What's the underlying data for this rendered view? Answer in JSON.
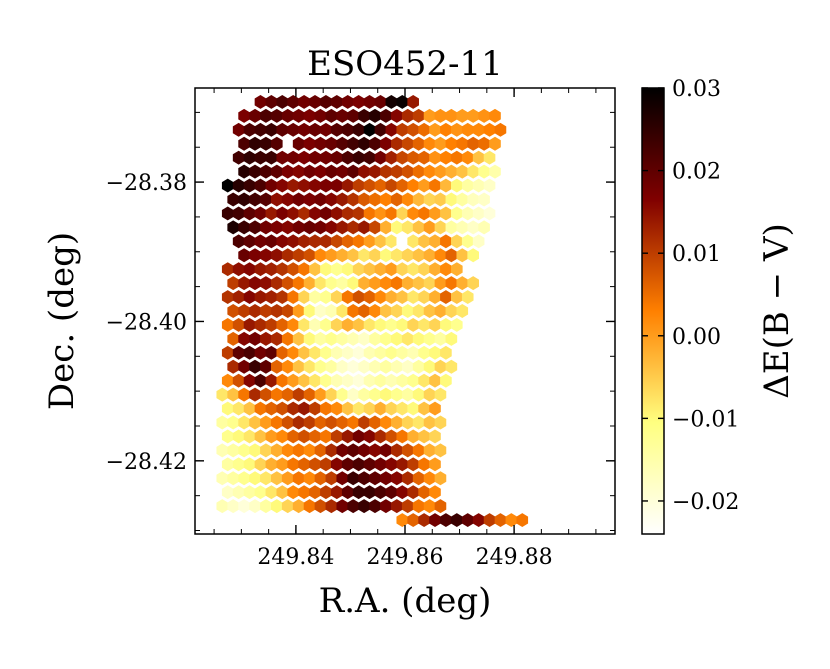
{
  "chart_data": {
    "type": "heatmap",
    "subtype": "hexbin",
    "title": "ESO452-11",
    "xlabel": "R.A. (deg)",
    "ylabel": "Dec. (deg)",
    "colorbar_label": "ΔE(B − V)",
    "colormap": "afmhot_r",
    "xlim": [
      249.8215,
      249.8985
    ],
    "ylim": [
      -28.4305,
      -28.3665
    ],
    "x_ticks": [
      249.84,
      249.86,
      249.88
    ],
    "x_tick_labels": [
      "249.84",
      "249.86",
      "249.88"
    ],
    "y_ticks": [
      -28.42,
      -28.4,
      -28.38
    ],
    "y_tick_labels": [
      "−28.42",
      "−28.40",
      "−28.38"
    ],
    "clim": [
      -0.024,
      0.03
    ],
    "colorbar_ticks": [
      0.03,
      0.02,
      0.01,
      0.0,
      -0.01,
      -0.02
    ],
    "colorbar_tick_labels": [
      "0.03",
      "0.02",
      "0.01",
      "0.00",
      "−0.01",
      "−0.02"
    ],
    "hex_ra_spacing": 0.002,
    "hex_rows": [
      {
        "dec": -28.3685,
        "ra_start": 249.8335,
        "values": [
          0.018,
          0.02,
          0.022,
          0.02,
          0.018,
          0.019,
          0.021,
          0.02,
          0.018,
          0.017,
          0.018,
          0.019,
          0.028,
          0.029,
          0.014
        ]
      },
      {
        "dec": -28.3705,
        "ra_start": 249.8305,
        "values": [
          0.017,
          0.019,
          0.022,
          0.021,
          0.019,
          0.018,
          0.017,
          0.018,
          0.02,
          0.019,
          0.02,
          0.024,
          0.026,
          0.022,
          0.016,
          0.012,
          0.01,
          0.0,
          0.001,
          0.001,
          0.0,
          0.0,
          0.001,
          0.002
        ]
      },
      {
        "dec": -28.3725,
        "ra_start": 249.8295,
        "values": [
          0.018,
          0.022,
          0.023,
          0.024,
          0.02,
          0.019,
          0.018,
          0.019,
          0.018,
          0.021,
          0.022,
          0.024,
          0.03,
          0.023,
          0.016,
          0.01,
          0.008,
          0.005,
          0.0,
          0.003,
          0.001,
          0.002,
          0.002,
          0.003,
          0.004
        ]
      },
      {
        "dec": -28.3745,
        "ra_start": 249.8305,
        "values": [
          0.022,
          0.025,
          0.024,
          0.021,
          null,
          0.019,
          0.017,
          0.018,
          0.019,
          0.021,
          0.023,
          0.025,
          0.022,
          0.017,
          0.012,
          0.009,
          0.006,
          0.002,
          0.0,
          0.003,
          0.004,
          0.006,
          0.005,
          0.0
        ]
      },
      {
        "dec": -28.3765,
        "ra_start": 249.8295,
        "values": [
          0.023,
          0.025,
          0.024,
          0.024,
          0.018,
          0.018,
          0.017,
          0.018,
          0.018,
          0.019,
          0.022,
          0.024,
          0.023,
          0.018,
          0.013,
          0.009,
          0.007,
          0.006,
          0.001,
          0.003,
          0.004,
          0.002,
          -0.004,
          -0.008
        ]
      },
      {
        "dec": -28.3785,
        "ra_start": 249.8305,
        "values": [
          0.026,
          0.024,
          0.022,
          0.02,
          0.017,
          0.016,
          0.018,
          0.017,
          0.019,
          0.018,
          0.02,
          0.015,
          0.014,
          0.011,
          0.01,
          0.008,
          0.005,
          0.002,
          0.0,
          -0.002,
          -0.004,
          -0.008,
          -0.012,
          -0.015
        ]
      },
      {
        "dec": -28.3805,
        "ra_start": 249.8275,
        "values": [
          0.031,
          0.026,
          0.024,
          0.022,
          0.018,
          0.016,
          0.014,
          0.015,
          0.016,
          0.017,
          0.017,
          0.014,
          0.01,
          0.008,
          0.006,
          0.009,
          0.006,
          0.003,
          0.0,
          0.004,
          -0.003,
          -0.01,
          -0.014,
          -0.016,
          -0.018
        ]
      },
      {
        "dec": -28.3825,
        "ra_start": 249.8285,
        "values": [
          0.024,
          0.025,
          0.023,
          0.021,
          0.015,
          0.016,
          0.018,
          0.017,
          0.018,
          0.016,
          0.014,
          0.011,
          0.007,
          0.005,
          0.003,
          0.006,
          0.002,
          -0.003,
          -0.006,
          -0.005,
          -0.01,
          -0.014,
          -0.017,
          -0.018
        ]
      },
      {
        "dec": -28.3845,
        "ra_start": 249.8275,
        "values": [
          0.024,
          0.023,
          0.02,
          0.018,
          0.014,
          0.017,
          0.015,
          0.012,
          0.016,
          0.018,
          0.015,
          0.012,
          0.011,
          0.004,
          0.001,
          0.004,
          -0.006,
          0.002,
          0.004,
          0.0,
          -0.004,
          -0.012,
          -0.016,
          -0.018,
          -0.02
        ]
      },
      {
        "dec": -28.3865,
        "ra_start": 249.8285,
        "values": [
          0.027,
          0.024,
          0.022,
          0.018,
          0.017,
          0.016,
          0.018,
          0.019,
          0.018,
          0.016,
          0.014,
          0.012,
          0.014,
          0.009,
          -0.002,
          -0.01,
          -0.008,
          -0.004,
          0.0,
          -0.006,
          -0.014,
          -0.016,
          -0.018,
          -0.016
        ]
      },
      {
        "dec": -28.3885,
        "ra_start": 249.8295,
        "values": [
          0.022,
          0.02,
          0.018,
          0.019,
          0.016,
          0.015,
          0.013,
          0.012,
          0.012,
          0.009,
          0.006,
          0.004,
          0.0,
          -0.004,
          -0.008,
          -0.024,
          -0.008,
          -0.004,
          -0.002,
          0.004,
          -0.006,
          -0.012,
          -0.018
        ]
      },
      {
        "dec": -28.3905,
        "ra_start": 249.8305,
        "values": [
          0.019,
          0.017,
          0.016,
          0.015,
          0.012,
          0.01,
          0.008,
          0.002,
          0.0,
          -0.002,
          -0.004,
          -0.008,
          -0.006,
          -0.01,
          -0.008,
          -0.006,
          -0.004,
          -0.002,
          0.002,
          0.006,
          -0.004,
          -0.01
        ]
      },
      {
        "dec": -28.3925,
        "ra_start": 249.8275,
        "values": [
          0.012,
          0.015,
          0.016,
          0.014,
          0.013,
          0.011,
          0.008,
          0.004,
          -0.004,
          -0.01,
          -0.012,
          -0.01,
          -0.006,
          -0.004,
          -0.002,
          0.0,
          -0.006,
          -0.008,
          -0.006,
          -0.002,
          0.002,
          -0.002
        ]
      },
      {
        "dec": -28.3945,
        "ra_start": 249.8285,
        "values": [
          0.01,
          0.014,
          0.016,
          0.015,
          0.012,
          0.008,
          0.004,
          -0.002,
          -0.008,
          -0.012,
          -0.014,
          -0.01,
          -0.002,
          0.0,
          0.002,
          0.004,
          -0.002,
          -0.004,
          -0.006,
          0.0,
          0.004,
          -0.002,
          -0.006
        ]
      },
      {
        "dec": -28.3965,
        "ra_start": 249.8275,
        "values": [
          0.011,
          0.013,
          0.016,
          0.014,
          0.013,
          0.011,
          0.004,
          -0.006,
          -0.014,
          -0.012,
          -0.006,
          0.004,
          0.008,
          0.006,
          0.002,
          -0.002,
          -0.004,
          -0.008,
          -0.006,
          -0.002,
          0.006,
          -0.004,
          -0.008
        ]
      },
      {
        "dec": -28.3985,
        "ra_start": 249.8285,
        "values": [
          0.008,
          0.01,
          0.012,
          0.01,
          0.011,
          0.009,
          0.0,
          -0.01,
          -0.018,
          -0.016,
          -0.008,
          0.004,
          0.006,
          0.002,
          -0.004,
          -0.006,
          -0.01,
          -0.008,
          -0.004,
          -0.002,
          -0.006,
          -0.008
        ]
      },
      {
        "dec": -28.4005,
        "ra_start": 249.8275,
        "values": [
          0.004,
          0.008,
          0.014,
          0.012,
          0.01,
          0.006,
          0.002,
          -0.008,
          -0.016,
          -0.012,
          -0.006,
          -0.002,
          -0.004,
          -0.008,
          -0.01,
          -0.012,
          -0.01,
          -0.006,
          -0.008,
          -0.006,
          -0.01,
          -0.012
        ]
      },
      {
        "dec": -28.4025,
        "ra_start": 249.8285,
        "values": [
          0.006,
          0.016,
          0.018,
          0.014,
          0.012,
          0.004,
          -0.004,
          -0.01,
          -0.014,
          -0.012,
          -0.014,
          -0.016,
          -0.018,
          -0.014,
          -0.012,
          -0.01,
          -0.008,
          -0.01,
          -0.012,
          -0.014,
          -0.01
        ]
      },
      {
        "dec": -28.4045,
        "ra_start": 249.8275,
        "values": [
          0.01,
          0.02,
          0.022,
          0.018,
          0.02,
          0.006,
          0.002,
          -0.004,
          -0.008,
          -0.012,
          -0.016,
          -0.018,
          -0.02,
          -0.016,
          -0.014,
          -0.012,
          -0.014,
          -0.016,
          -0.012,
          -0.01,
          -0.008
        ]
      },
      {
        "dec": -28.4065,
        "ra_start": 249.8285,
        "values": [
          0.012,
          0.018,
          0.024,
          0.02,
          0.006,
          0.002,
          -0.004,
          -0.008,
          -0.012,
          -0.014,
          -0.018,
          -0.02,
          -0.018,
          -0.016,
          -0.014,
          -0.016,
          -0.018,
          -0.014,
          -0.01,
          -0.006,
          -0.008
        ]
      },
      {
        "dec": -28.4085,
        "ra_start": 249.8275,
        "values": [
          0.002,
          0.008,
          0.016,
          0.022,
          0.014,
          0.004,
          0.0,
          -0.004,
          -0.008,
          -0.012,
          -0.016,
          -0.018,
          -0.02,
          -0.016,
          -0.014,
          -0.016,
          -0.014,
          -0.012,
          -0.008,
          -0.004,
          -0.01
        ]
      },
      {
        "dec": -28.4105,
        "ra_start": 249.8265,
        "values": [
          -0.008,
          -0.004,
          0.004,
          0.012,
          0.008,
          0.004,
          0.006,
          0.01,
          0.006,
          0.0,
          -0.006,
          -0.012,
          -0.018,
          -0.014,
          -0.012,
          -0.01,
          -0.012,
          -0.014,
          -0.01,
          -0.006,
          -0.008
        ]
      },
      {
        "dec": -28.4125,
        "ra_start": 249.8275,
        "values": [
          -0.01,
          -0.008,
          -0.004,
          0.004,
          0.006,
          0.008,
          0.012,
          0.014,
          0.01,
          0.004,
          0.002,
          -0.004,
          -0.008,
          -0.006,
          -0.002,
          -0.006,
          -0.008,
          -0.01,
          -0.004,
          0.0
        ]
      },
      {
        "dec": -28.4145,
        "ra_start": 249.8265,
        "values": [
          -0.014,
          -0.012,
          -0.008,
          -0.004,
          0.0,
          0.004,
          0.008,
          0.012,
          0.01,
          0.006,
          0.008,
          0.006,
          0.004,
          0.01,
          0.006,
          0.002,
          -0.002,
          -0.006,
          -0.008,
          -0.004,
          -0.006
        ]
      },
      {
        "dec": -28.4165,
        "ra_start": 249.8275,
        "values": [
          -0.012,
          -0.01,
          -0.008,
          -0.004,
          0.0,
          0.002,
          0.006,
          0.008,
          0.006,
          0.004,
          0.01,
          0.014,
          0.018,
          0.016,
          0.012,
          0.008,
          0.004,
          -0.002,
          -0.004,
          -0.006
        ]
      },
      {
        "dec": -28.4185,
        "ra_start": 249.8265,
        "values": [
          -0.016,
          -0.014,
          -0.012,
          -0.01,
          -0.006,
          -0.002,
          0.002,
          0.004,
          0.002,
          0.006,
          0.012,
          0.018,
          0.02,
          0.018,
          0.016,
          0.018,
          0.012,
          0.008,
          0.004,
          -0.002,
          -0.004
        ]
      },
      {
        "dec": -28.4205,
        "ra_start": 249.8275,
        "values": [
          -0.014,
          -0.012,
          -0.01,
          -0.006,
          -0.002,
          0.0,
          0.004,
          0.006,
          0.008,
          0.01,
          0.016,
          0.02,
          0.022,
          0.02,
          0.018,
          0.016,
          0.014,
          0.01,
          0.004,
          0.0
        ]
      },
      {
        "dec": -28.4225,
        "ra_start": 249.8265,
        "values": [
          -0.016,
          -0.014,
          -0.012,
          -0.01,
          -0.008,
          -0.004,
          0.0,
          0.004,
          0.002,
          0.006,
          0.01,
          0.018,
          0.024,
          0.022,
          0.02,
          0.018,
          0.016,
          0.012,
          0.006,
          0.002,
          -0.002
        ]
      },
      {
        "dec": -28.4245,
        "ra_start": 249.8275,
        "values": [
          -0.018,
          -0.016,
          -0.014,
          -0.012,
          -0.008,
          -0.004,
          0.002,
          0.004,
          0.006,
          0.01,
          0.014,
          0.02,
          0.024,
          0.024,
          0.022,
          0.02,
          0.016,
          0.012,
          0.006,
          0.002
        ]
      },
      {
        "dec": -28.4265,
        "ra_start": 249.8265,
        "values": [
          -0.016,
          -0.018,
          -0.02,
          -0.018,
          -0.014,
          -0.01,
          -0.006,
          -0.002,
          0.004,
          0.008,
          0.012,
          0.018,
          0.022,
          0.024,
          0.022,
          0.018,
          0.014,
          0.01,
          0.004,
          0.002,
          0.006
        ]
      },
      {
        "dec": -28.4285,
        "ra_start": 249.8595,
        "values": [
          0.002,
          0.006,
          0.012,
          0.018,
          0.022,
          0.024,
          0.02,
          0.016,
          0.01,
          0.006,
          0.002,
          0.004
        ]
      }
    ]
  }
}
